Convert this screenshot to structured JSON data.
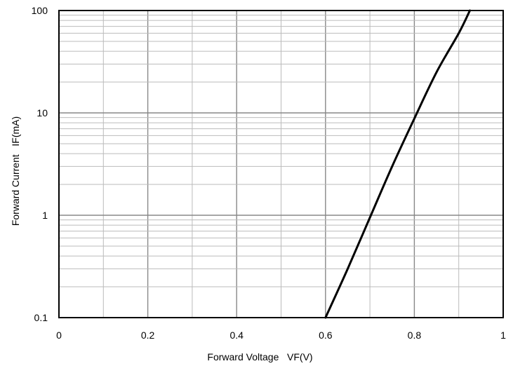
{
  "chart_data": {
    "type": "line",
    "xlabel": "Forward Voltage   VF(V)",
    "ylabel": "Forward Current   IF(mA)",
    "xlim": [
      0,
      1
    ],
    "ylim": [
      0.1,
      100
    ],
    "yscale": "log",
    "x_ticks": [
      0,
      0.2,
      0.4,
      0.6,
      0.8,
      1
    ],
    "x_tick_labels": [
      "0",
      "0.2",
      "0.4",
      "0.6",
      "0.8",
      "1"
    ],
    "y_ticks": [
      0.1,
      1,
      10,
      100
    ],
    "y_tick_labels": [
      "0.1",
      "1",
      "10",
      "100"
    ],
    "grid": true,
    "legend": "none",
    "series": [
      {
        "color": "#000000",
        "x": [
          0.6,
          0.65,
          0.7,
          0.75,
          0.8,
          0.85,
          0.9,
          0.925
        ],
        "y": [
          0.1,
          0.3,
          0.95,
          3.0,
          8.8,
          25,
          60,
          100
        ]
      }
    ]
  }
}
